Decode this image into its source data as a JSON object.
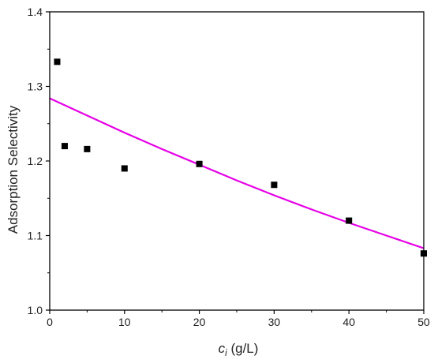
{
  "chart_data": {
    "type": "scatter",
    "xlabel_var": "c",
    "xlabel_sub": "i",
    "xlabel_unit": " (g/L)",
    "ylabel": "Adsorption Selectivity",
    "xlim": [
      0,
      50
    ],
    "ylim": [
      1.0,
      1.4
    ],
    "xticks": [
      0,
      10,
      20,
      30,
      40,
      50
    ],
    "xtick_labels": [
      "0",
      "10",
      "20",
      "30",
      "40",
      "50"
    ],
    "yticks": [
      1.0,
      1.1,
      1.2,
      1.3,
      1.4
    ],
    "ytick_labels": [
      "1.0",
      "1.1",
      "1.2",
      "1.3",
      "1.4"
    ],
    "grid": false,
    "series": [
      {
        "kind": "points",
        "color": "#000000",
        "marker": "square",
        "points": [
          {
            "x": 1,
            "y": 1.333
          },
          {
            "x": 2,
            "y": 1.22
          },
          {
            "x": 5,
            "y": 1.216
          },
          {
            "x": 10,
            "y": 1.19
          },
          {
            "x": 20,
            "y": 1.196
          },
          {
            "x": 30,
            "y": 1.168
          },
          {
            "x": 40,
            "y": 1.12
          },
          {
            "x": 50,
            "y": 1.076
          }
        ]
      },
      {
        "kind": "fit-line",
        "color": "#e600e6",
        "points": [
          {
            "x": 0,
            "y": 1.284
          },
          {
            "x": 5,
            "y": 1.261
          },
          {
            "x": 10,
            "y": 1.238
          },
          {
            "x": 15,
            "y": 1.216
          },
          {
            "x": 20,
            "y": 1.195
          },
          {
            "x": 25,
            "y": 1.174
          },
          {
            "x": 30,
            "y": 1.154
          },
          {
            "x": 35,
            "y": 1.135
          },
          {
            "x": 40,
            "y": 1.117
          },
          {
            "x": 45,
            "y": 1.1
          },
          {
            "x": 50,
            "y": 1.083
          }
        ]
      }
    ]
  }
}
